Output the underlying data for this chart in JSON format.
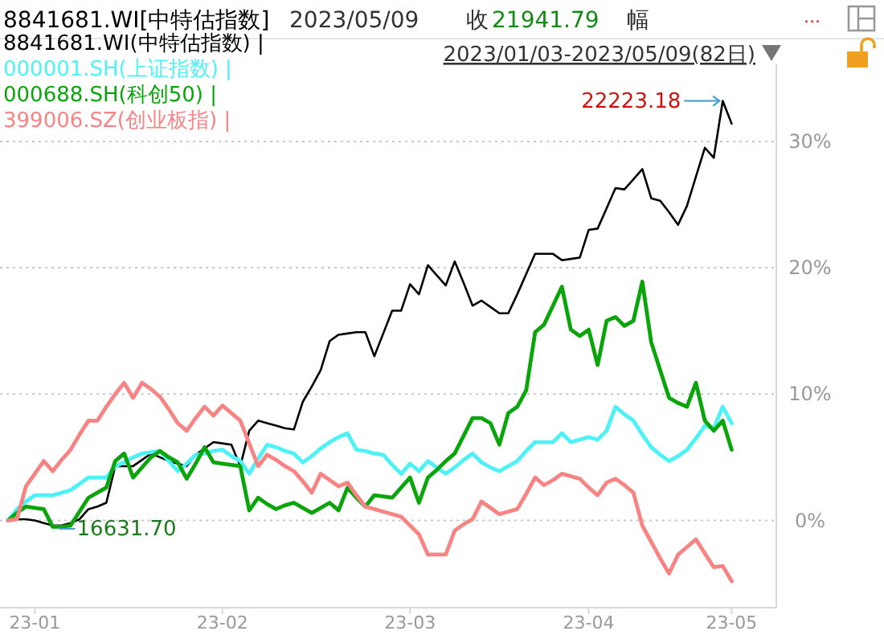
{
  "chart_data": {
    "type": "line",
    "title": "8841681.WI[中特估指数]",
    "subtitle": "2023/05/09",
    "annotations": [
      "收",
      "21941.79",
      "幅",
      "...",
      "2023/01/03-2023/05/09(82日)",
      "22223.18",
      "16631.70"
    ],
    "categories": [
      null,
      null,
      null,
      "23-01",
      null,
      null,
      null,
      null,
      null,
      null,
      null,
      null,
      null,
      null,
      null,
      null,
      null,
      null,
      null,
      null,
      null,
      null,
      null,
      null,
      "23-02",
      null,
      null,
      null,
      null,
      null,
      null,
      null,
      null,
      null,
      null,
      null,
      null,
      null,
      null,
      null,
      null,
      null,
      null,
      null,
      null,
      "23-03",
      null,
      null,
      null,
      null,
      null,
      null,
      null,
      null,
      null,
      null,
      null,
      null,
      null,
      null,
      null,
      null,
      null,
      null,
      null,
      "23-04",
      null,
      null,
      null,
      null,
      null,
      null,
      null,
      null,
      null,
      null,
      null,
      null,
      null,
      null,
      null,
      "23-05"
    ],
    "ylim": [
      -6.9,
      36.1
    ],
    "yticks": [
      {
        "value": 0,
        "label": "0%"
      },
      {
        "value": 10,
        "label": "10%"
      },
      {
        "value": 20,
        "label": "20%"
      },
      {
        "value": 30,
        "label": "30%"
      }
    ],
    "grid": "y",
    "legend": "top left",
    "line_style": "solid",
    "marker": "none",
    "series": [
      {
        "name": "8841681.WI(中特估指数) |",
        "color": "#000000",
        "values": [
          0,
          0.1,
          0.1,
          0,
          -0.2,
          -0.4,
          -0.4,
          -0.2,
          0.1,
          0.9,
          1.1,
          1.4,
          4.3,
          4.3,
          4.3,
          4.8,
          5.3,
          5.0,
          4.7,
          4.5,
          4.3,
          5.2,
          5.7,
          6.2,
          6.1,
          6.0,
          4.3,
          7.1,
          7.9,
          7.7,
          7.5,
          7.3,
          7.2,
          9.4,
          10.6,
          11.9,
          14.2,
          14.7,
          14.8,
          14.9,
          14.9,
          13.0,
          14.8,
          16.6,
          16.6,
          18.7,
          17.9,
          20.2,
          19.4,
          18.6,
          20.5,
          18.8,
          17.0,
          17.4,
          16.9,
          16.4,
          16.4,
          17.9,
          19.5,
          21.1,
          21.1,
          21.1,
          20.6,
          20.7,
          20.8,
          23.0,
          23.1,
          24.7,
          26.3,
          26.2,
          27.0,
          27.8,
          25.5,
          25.3,
          24.4,
          23.4,
          24.9,
          27.2,
          29.5,
          28.7,
          33.2,
          31.4
        ]
      },
      {
        "name": "000001.SH(上证指数) |",
        "color": "#4cf2f6",
        "values": [
          0,
          0.9,
          1.5,
          2.0,
          2.0,
          2.0,
          2.2,
          2.4,
          2.9,
          3.4,
          3.4,
          3.4,
          4.3,
          4.6,
          5.0,
          5.3,
          5.4,
          5.5,
          4.7,
          3.9,
          4.5,
          5.2,
          5.3,
          5.5,
          5.6,
          5.1,
          4.7,
          3.7,
          4.9,
          6.0,
          5.8,
          5.5,
          5.3,
          4.6,
          5.1,
          5.7,
          6.2,
          6.6,
          6.9,
          5.6,
          5.5,
          5.3,
          5.2,
          4.4,
          3.7,
          4.5,
          3.9,
          4.7,
          4.2,
          3.7,
          4.2,
          4.8,
          5.3,
          4.6,
          4.2,
          3.9,
          4.3,
          4.7,
          5.5,
          6.2,
          6.2,
          6.2,
          6.9,
          6.2,
          6.4,
          6.6,
          6.4,
          7.1,
          9.0,
          8.4,
          7.9,
          6.8,
          5.8,
          5.2,
          4.7,
          5.1,
          5.6,
          6.5,
          7.5,
          7.3,
          9.0,
          7.7
        ]
      },
      {
        "name": "000688.SH(科创50) |",
        "color": "#0aa50a",
        "values": [
          0,
          0.6,
          1.1,
          1.0,
          0.9,
          -0.5,
          -0.5,
          -0.4,
          0.7,
          1.8,
          2.2,
          2.6,
          4.7,
          5.3,
          3.4,
          4.2,
          5.0,
          5.5,
          5.0,
          4.6,
          3.3,
          4.5,
          5.8,
          4.6,
          4.5,
          4.4,
          4.3,
          0.8,
          1.8,
          1.3,
          0.9,
          1.2,
          1.4,
          1.0,
          0.6,
          1.0,
          1.4,
          0.8,
          2.6,
          1.8,
          1.1,
          2.0,
          1.9,
          1.8,
          2.6,
          3.4,
          1.4,
          3.4,
          4.0,
          4.7,
          5.3,
          6.7,
          8.1,
          8.1,
          7.7,
          6.0,
          8.5,
          9.0,
          10.3,
          14.9,
          15.5,
          17.0,
          18.5,
          15.1,
          14.6,
          15.1,
          12.3,
          15.8,
          16.1,
          15.4,
          15.8,
          18.9,
          14.1,
          11.9,
          9.7,
          9.3,
          9.0,
          10.9,
          7.9,
          7.1,
          7.9,
          5.6
        ]
      },
      {
        "name": "399006.SZ(创业板指) |",
        "color": "#f78383",
        "values": [
          0,
          0.1,
          2.7,
          3.7,
          4.7,
          3.9,
          4.8,
          5.6,
          6.8,
          7.9,
          7.9,
          9.0,
          10.0,
          10.9,
          9.7,
          10.9,
          10.4,
          9.8,
          8.8,
          7.7,
          7.1,
          8.1,
          9.0,
          8.3,
          9.1,
          8.5,
          7.9,
          6.1,
          4.3,
          5.2,
          4.8,
          4.3,
          3.9,
          3.1,
          2.2,
          3.7,
          3.2,
          2.7,
          3.0,
          2.0,
          1.1,
          0.9,
          0.7,
          0.5,
          0.3,
          -0.4,
          -1.1,
          -2.7,
          -2.7,
          -2.7,
          -0.8,
          -0.3,
          0.1,
          1.5,
          1.0,
          0.5,
          0.7,
          0.9,
          2.1,
          3.4,
          2.8,
          3.2,
          3.7,
          3.5,
          3.3,
          2.6,
          2.0,
          3.0,
          3.3,
          2.8,
          2.2,
          -0.4,
          -1.7,
          -3.0,
          -4.2,
          -2.7,
          -2.1,
          -1.5,
          -2.6,
          -3.7,
          -3.6,
          -4.8
        ]
      }
    ]
  }
}
